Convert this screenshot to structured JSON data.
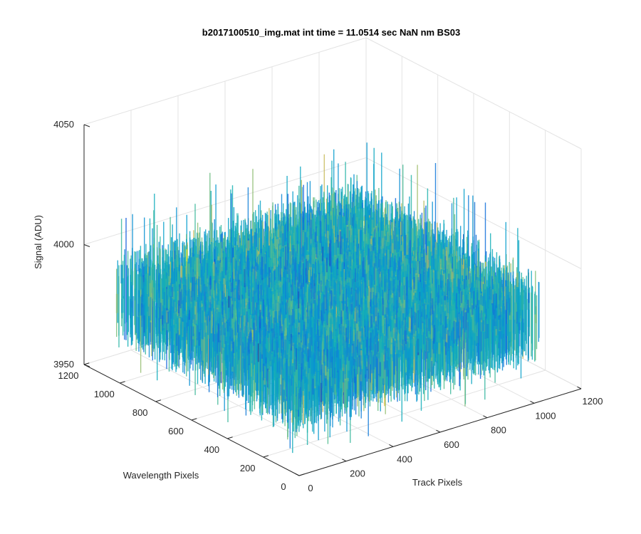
{
  "chart_data": {
    "type": "surface",
    "title": "b2017100510_img.mat int time = 11.0514 sec  NaN nm BS03",
    "xlabel": "Track Pixels",
    "ylabel": "Wavelength Pixels",
    "zlabel": "Signal (ADU)",
    "xlim": [
      0,
      1200
    ],
    "ylim": [
      0,
      1200
    ],
    "zlim": [
      3950,
      4050
    ],
    "x_ticks": [
      "0",
      "200",
      "400",
      "600",
      "800",
      "1000",
      "1200"
    ],
    "y_ticks": [
      "0",
      "200",
      "400",
      "600",
      "800",
      "1000",
      "1200"
    ],
    "z_ticks": [
      "3950",
      "4000",
      "4050"
    ],
    "grid": true,
    "colormap": "parula",
    "data_extent": {
      "x": [
        0,
        1024
      ],
      "y": [
        0,
        1024
      ]
    },
    "signal": {
      "mean": 3985,
      "typical_min": 3965,
      "typical_max": 4005,
      "peak_max": 4030,
      "peak_min": 3952
    }
  }
}
